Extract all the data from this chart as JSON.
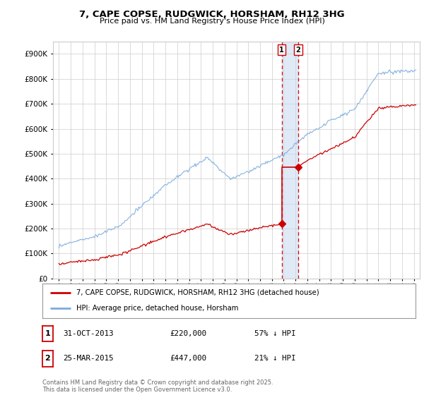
{
  "title": "7, CAPE COPSE, RUDGWICK, HORSHAM, RH12 3HG",
  "subtitle": "Price paid vs. HM Land Registry's House Price Index (HPI)",
  "red_label": "7, CAPE COPSE, RUDGWICK, HORSHAM, RH12 3HG (detached house)",
  "blue_label": "HPI: Average price, detached house, Horsham",
  "footer": "Contains HM Land Registry data © Crown copyright and database right 2025.\nThis data is licensed under the Open Government Licence v3.0.",
  "transactions": [
    {
      "num": 1,
      "date": "31-OCT-2013",
      "price": 220000,
      "hpi_pct": "57% ↓ HPI",
      "year": 2013.83
    },
    {
      "num": 2,
      "date": "25-MAR-2015",
      "price": 447000,
      "hpi_pct": "21% ↓ HPI",
      "year": 2015.23
    }
  ],
  "vline_color": "#dd0000",
  "vline_fill": "#c8d8f0",
  "red_line_color": "#cc0000",
  "blue_line_color": "#7aaadd",
  "background_color": "#ffffff",
  "grid_color": "#cccccc",
  "ylim": [
    0,
    950000
  ],
  "yticks": [
    0,
    100000,
    200000,
    300000,
    400000,
    500000,
    600000,
    700000,
    800000,
    900000
  ],
  "xlim_start": 1994.5,
  "xlim_end": 2025.5
}
